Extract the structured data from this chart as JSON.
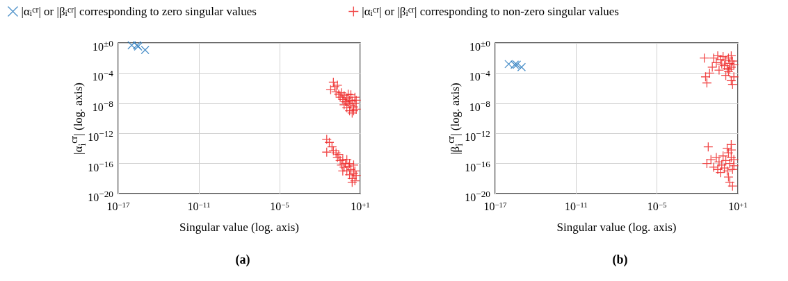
{
  "chart_data": [
    {
      "type": "scatter",
      "title": "(a)",
      "xlabel": "Singular value (log. axis)",
      "ylabel": "|α$_{i}$$^{cr}$| (log. axis)",
      "log": "xy",
      "grid": true,
      "legend": "top",
      "xlim": [
        1e-17,
        10
      ],
      "xticks": [
        {
          "value": 1e-17,
          "label": "10$^{−17}$"
        },
        {
          "value": 1e-11,
          "label": "10$^{−11}$"
        },
        {
          "value": 1e-05,
          "label": "10$^{−5}$"
        },
        {
          "value": 10,
          "label": "10$^{+1}$"
        }
      ],
      "ylim": [
        1e-20,
        1
      ],
      "yticks": [
        {
          "value": 1e-20,
          "label": "10$^{−20}$"
        },
        {
          "value": 1e-16,
          "label": "10$^{−16}$"
        },
        {
          "value": 1e-12,
          "label": "10$^{−12}$"
        },
        {
          "value": 1e-08,
          "label": "10$^{−8}$"
        },
        {
          "value": 0.0001,
          "label": "10$^{−4}$"
        },
        {
          "value": 1,
          "label": "10$^{±0}$"
        }
      ],
      "series": [
        {
          "name": "|α$_{i}$$^{cr}$| or |β$_{i}$$^{cr}$| corresponding to zero singular values",
          "color": "#2e7ebf",
          "marker": "cross",
          "x": [
            1e-16,
            2.5e-16,
            3e-16,
            1e-15
          ],
          "values": [
            0.5,
            0.5,
            0.35,
            0.12
          ]
        },
        {
          "name": "|α$_{i}$$^{cr}$| or |β$_{i}$$^{cr}$| corresponding to non-zero singular values",
          "color": "#ee2a2a",
          "marker": "plus",
          "x": [
            0.063,
            0.1,
            0.126,
            0.158,
            0.2,
            0.25,
            0.32,
            0.4,
            0.5,
            0.63,
            0.79,
            1,
            1.26,
            1.6,
            2,
            2.5,
            3.2,
            4,
            5,
            1.6,
            2.5,
            1,
            4,
            2,
            0.63,
            3.2,
            1.26,
            5,
            0.032,
            0.05,
            0.032,
            0.079,
            0.1,
            0.158,
            0.2,
            0.25,
            0.32,
            0.4,
            0.5,
            0.63,
            0.79,
            1,
            1.26,
            1.6,
            2,
            2.5,
            3.2,
            4,
            5,
            2.5,
            3.2,
            1.6,
            0.5,
            1,
            4
          ],
          "values": [
            6.3e-07,
            6.3e-06,
            1.6e-06,
            3.2e-07,
            2.5e-06,
            1.6e-07,
            6.3e-08,
            2.5e-07,
            3.2e-08,
            1e-07,
            1.6e-08,
            5e-08,
            1e-08,
            2.5e-08,
            5e-09,
            2e-08,
            3.2e-09,
            1e-08,
            1.6e-09,
            1e-09,
            5e-10,
            2.5e-09,
            6.3e-08,
            1.3e-07,
            6.3e-09,
            1e-09,
            1.6e-07,
            2.5e-08,
            1.6e-13,
            6.3e-14,
            3.2e-15,
            1.6e-14,
            5e-15,
            2.5e-15,
            6.3e-16,
            1.6e-15,
            2.5e-16,
            6.3e-17,
            3.2e-16,
            3.2e-17,
            1e-16,
            1e-17,
            4e-17,
            3.2e-18,
            1.6e-17,
            1e-18,
            5e-18,
            5e-19,
            2.5e-18,
            3.2e-19,
            6.3e-17,
            1e-16,
            1e-17,
            3.2e-16,
            1e-17
          ]
        }
      ]
    },
    {
      "type": "scatter",
      "title": "(b)",
      "xlabel": "Singular value (log. axis)",
      "ylabel": "|β$_{i}$$^{cr}$| (log. axis)",
      "log": "xy",
      "grid": true,
      "xlim": [
        1e-17,
        10
      ],
      "xticks": [
        {
          "value": 1e-17,
          "label": "10$^{−17}$"
        },
        {
          "value": 1e-11,
          "label": "10$^{−11}$"
        },
        {
          "value": 1e-05,
          "label": "10$^{−5}$"
        },
        {
          "value": 10,
          "label": "10$^{+1}$"
        }
      ],
      "ylim": [
        1e-20,
        1
      ],
      "yticks": [
        {
          "value": 1e-20,
          "label": "10$^{−20}$"
        },
        {
          "value": 1e-16,
          "label": "10$^{−16}$"
        },
        {
          "value": 1e-12,
          "label": "10$^{−12}$"
        },
        {
          "value": 1e-08,
          "label": "10$^{−8}$"
        },
        {
          "value": 0.0001,
          "label": "10$^{−4}$"
        },
        {
          "value": 1,
          "label": "10$^{±0}$"
        }
      ],
      "series": [
        {
          "color": "#2e7ebf",
          "marker": "cross",
          "x": [
            1e-16,
            2.8e-16,
            4e-16,
            9e-16
          ],
          "values": [
            0.0016,
            0.0013,
            0.0013,
            0.00063
          ]
        },
        {
          "color": "#ee2a2a",
          "marker": "plus",
          "x": [
            0.032,
            0.04,
            0.05,
            0.079,
            0.126,
            0.158,
            0.25,
            0.32,
            0.4,
            0.5,
            0.63,
            0.79,
            1,
            1.26,
            1.6,
            2,
            2.5,
            3.2,
            4,
            5,
            3.2,
            2,
            3.2,
            4,
            5,
            1.26,
            2.5,
            0.063,
            0.05,
            0.1,
            0.158,
            0.25,
            0.32,
            0.4,
            0.5,
            0.63,
            0.79,
            1,
            1.26,
            1.6,
            2,
            2.5,
            3.2,
            4,
            5,
            3.2,
            2.5,
            4,
            2,
            3.2,
            5,
            1.6
          ],
          "values": [
            0.01,
            3.2e-05,
            5e-06,
            0.0001,
            0.00063,
            0.01,
            0.0025,
            0.02,
            0.00025,
            0.0063,
            0.0016,
            0.016,
            0.001,
            0.005,
            0.0004,
            0.01,
            0.002,
            0.00063,
            0.004,
            0.0013,
            0.02,
            0.00016,
            1e-05,
            3.2e-06,
            3.2e-05,
            5e-05,
            0.00032,
            1.6e-14,
            1e-16,
            3.2e-16,
            3.2e-17,
            6.3e-16,
            1.6e-17,
            1.6e-16,
            6.3e-18,
            6.3e-17,
            1e-15,
            2.5e-17,
            2.5e-16,
            1e-17,
            2.5e-15,
            1e-16,
            6.3e-16,
            1.6e-17,
            3.2e-16,
            3.2e-14,
            3.2e-19,
            1e-19,
            1.6e-18,
            6.3e-15,
            5e-17,
            1e-14
          ]
        }
      ]
    }
  ]
}
